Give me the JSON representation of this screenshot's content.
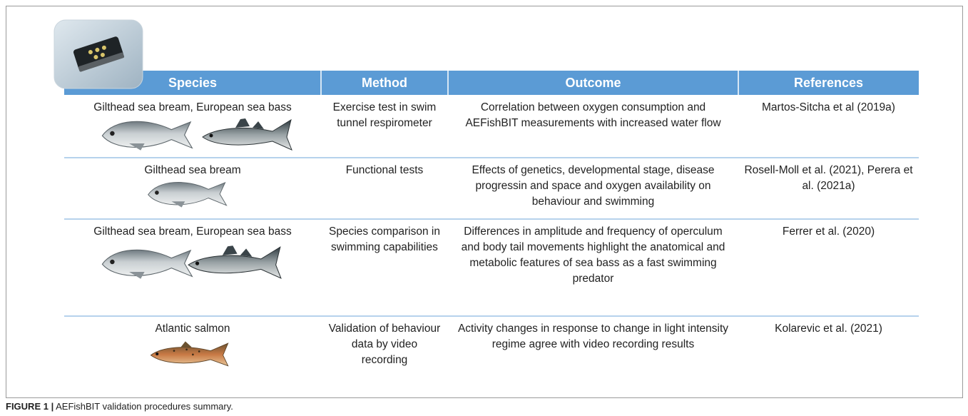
{
  "table": {
    "columns": [
      "Species",
      "Method",
      "Outcome",
      "References"
    ],
    "rows": [
      [
        "Gilthead sea bream, European sea bass",
        "Exercise test in swim tunnel respirometer",
        "Correlation between oxygen consumption and AEFishBIT measurements with increased water flow",
        "Martos-Sitcha et al (2019a)"
      ],
      [
        "Gilthead sea bream",
        "Functional tests",
        "Effects of genetics, developmental stage, disease progressin and space and oxygen availability on behaviour and swimming",
        "Rosell-Moll et al. (2021), Perera et al. (2021a)"
      ],
      [
        "Gilthead sea bream, European sea bass",
        "Species comparison in swimming capabilities",
        "Differences in amplitude and frequency of operculum and body tail movements highlight the anatomical and metabolic features of sea bass as a fast swimming predator",
        "Ferrer et al. (2020)"
      ],
      [
        "Atlantic salmon",
        "Validation of behaviour data by video recording",
        "Activity changes in response to change in light intensity regime agree with video recording results",
        "Kolarevic et al. (2021)"
      ]
    ]
  },
  "figure": {
    "label": "FIGURE 1 |",
    "caption": "AEFishBIT validation procedures summary."
  }
}
